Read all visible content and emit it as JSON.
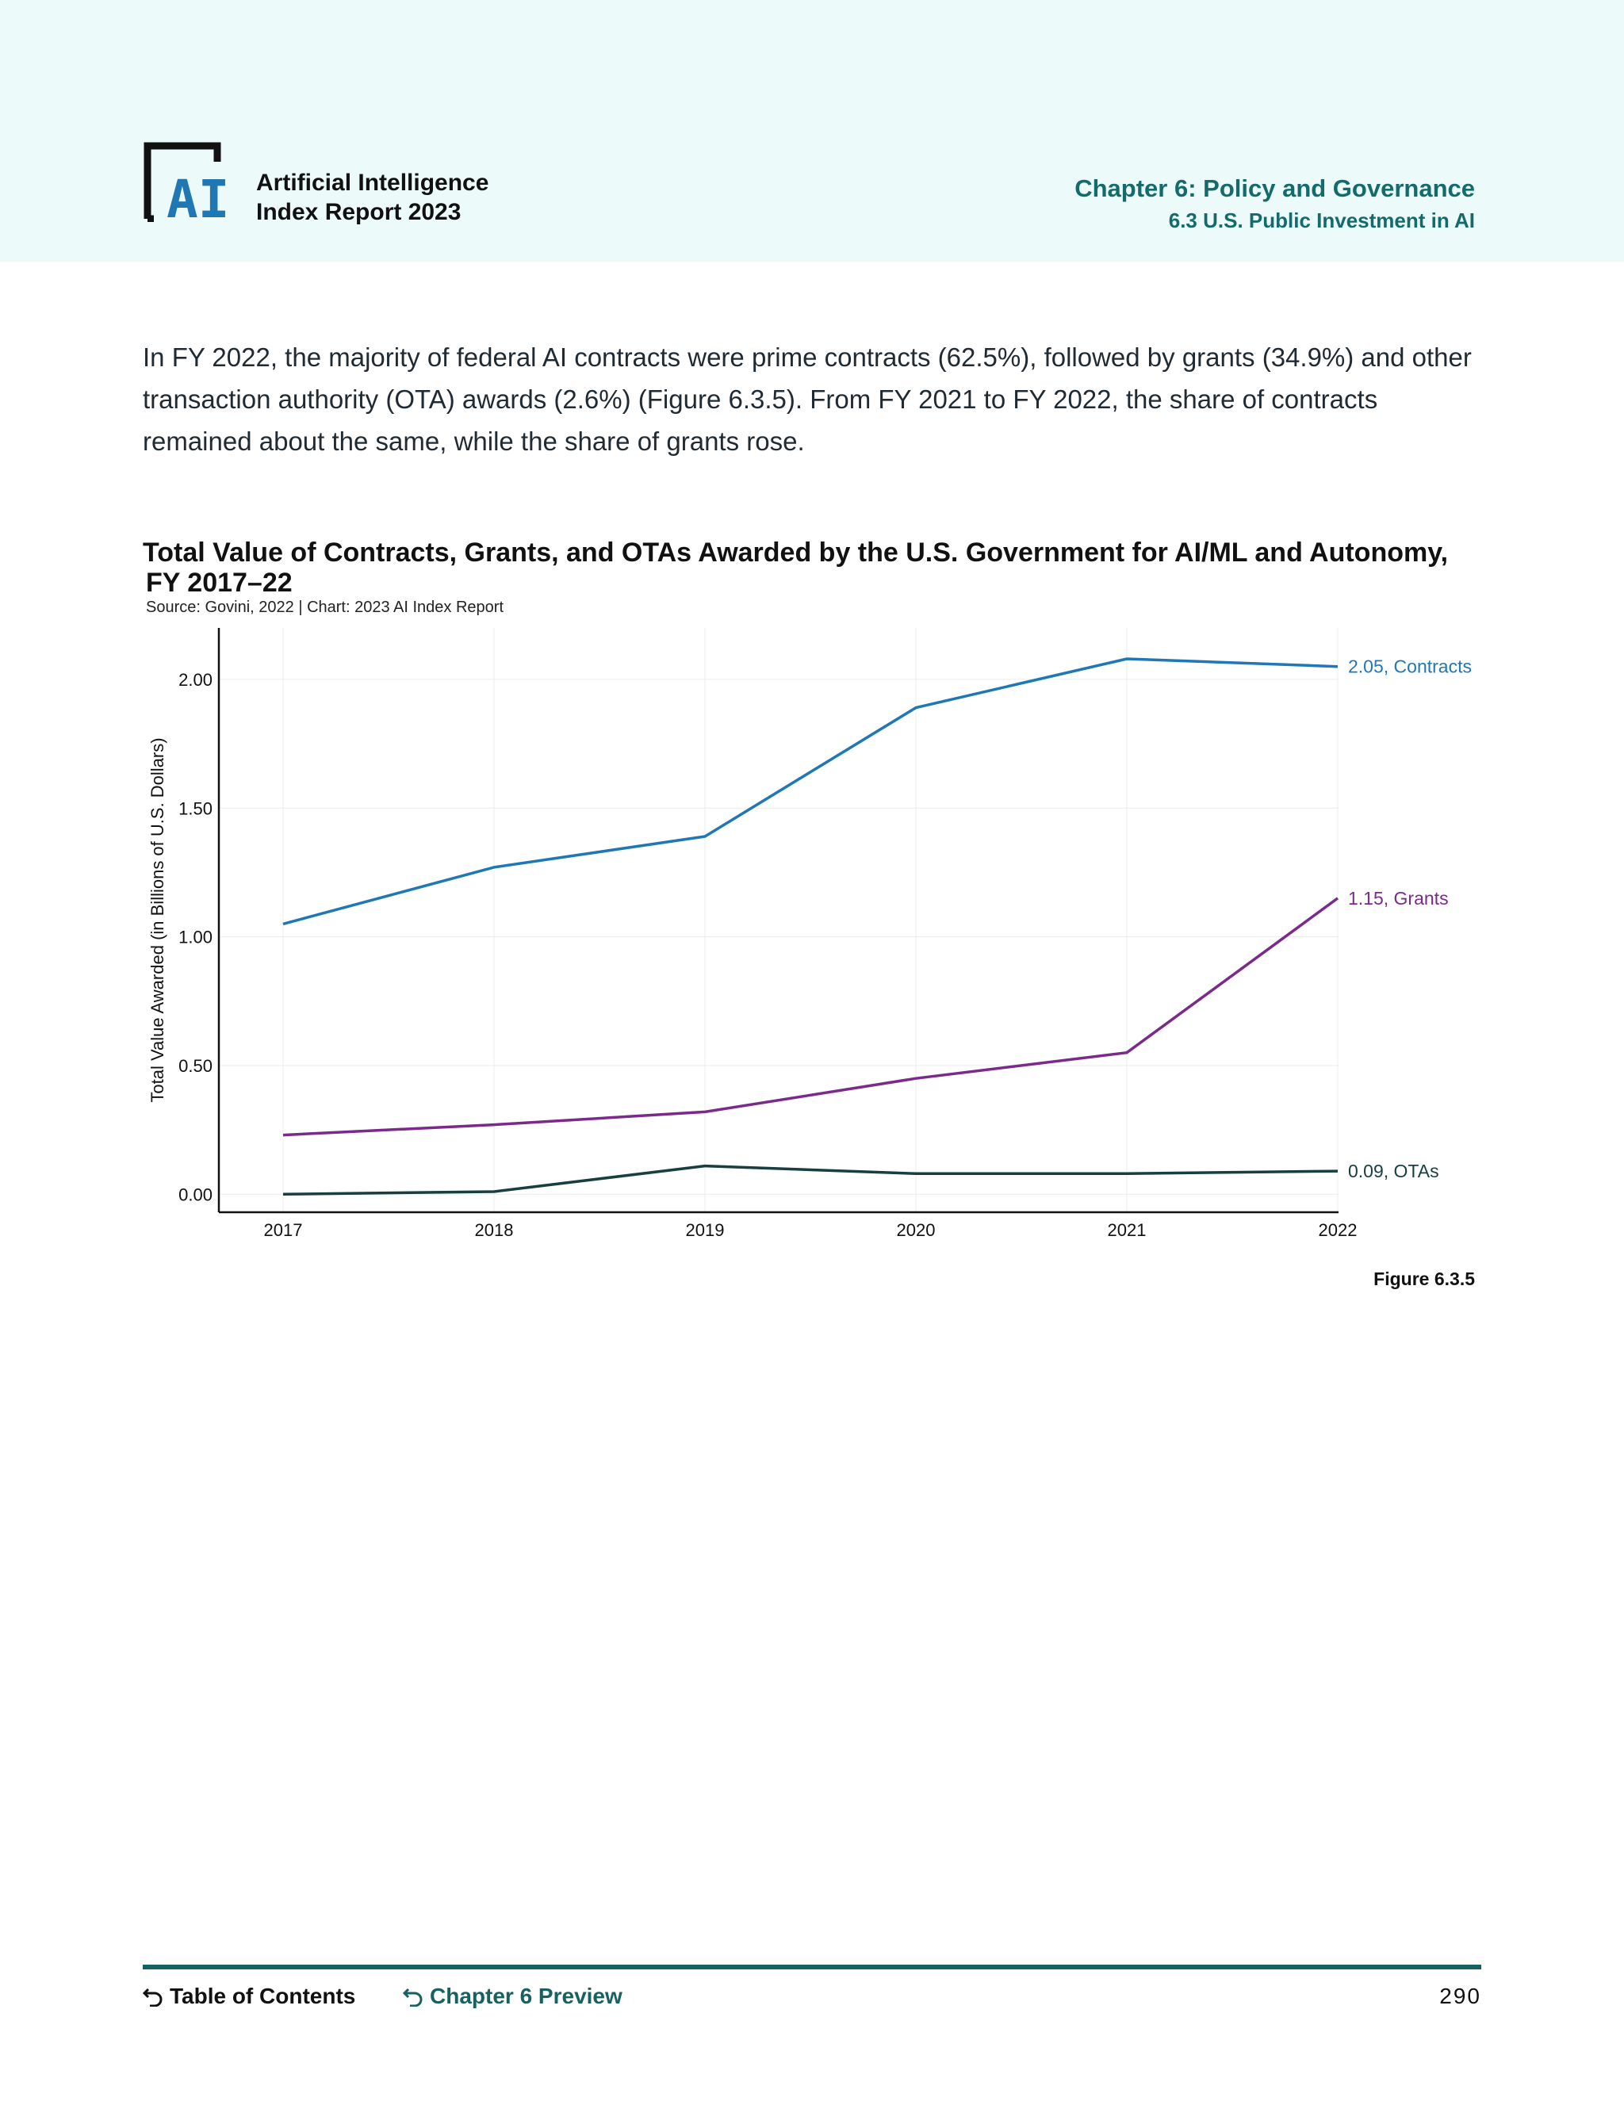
{
  "header": {
    "report_title_line1": "Artificial Intelligence",
    "report_title_line2": "Index Report 2023",
    "chapter_title": "Chapter 6: Policy and Governance",
    "section_title": "6.3 U.S. Public Investment in AI",
    "logo_text": "AI"
  },
  "intro_text": "In FY 2022, the majority of federal AI contracts were prime contracts (62.5%), followed by grants (34.9%) and other transaction authority (OTA) awards (2.6%) (Figure 6.3.5). From FY 2021 to FY 2022, the share of contracts remained about the same, while the share of grants rose.",
  "chart_data": {
    "type": "line",
    "title_line1": "Total Value of Contracts, Grants, and OTAs Awarded by the U.S. Government for AI/ML and Autonomy,",
    "title_line2": "FY 2017–22",
    "source": "Source: Govini, 2022 | Chart: 2023 AI Index Report",
    "ylabel": "Total Value Awarded (in Billions of U.S. Dollars)",
    "xlabel": "",
    "x": [
      "2017",
      "2018",
      "2019",
      "2020",
      "2021",
      "2022"
    ],
    "ylim": [
      -0.07,
      2.2
    ],
    "yticks": [
      0,
      0.5,
      1,
      1.5,
      2
    ],
    "ytick_labels": [
      "0.00",
      "0.50",
      "1.00",
      "1.50",
      "2.00"
    ],
    "grid": true,
    "series": [
      {
        "name": "Contracts",
        "values": [
          1.05,
          1.27,
          1.39,
          1.89,
          2.08,
          2.05
        ],
        "color": "#1f77b4",
        "end_label": "2.05, Contracts"
      },
      {
        "name": "Grants",
        "values": [
          0.23,
          0.27,
          0.32,
          0.45,
          0.55,
          1.15
        ],
        "color": "#7b2a8c",
        "end_label": "1.15, Grants"
      },
      {
        "name": "OTAs",
        "values": [
          0.0,
          0.01,
          0.11,
          0.08,
          0.08,
          0.09
        ],
        "color": "#173f3f",
        "end_label": "0.09, OTAs"
      }
    ]
  },
  "figure_label": "Figure 6.3.5",
  "footer": {
    "toc_label": "Table of Contents",
    "chapter_preview_label": "Chapter 6 Preview",
    "page_number": "290"
  },
  "colors": {
    "header_bg": "#ecfbfa",
    "accent": "#136b6b",
    "logo_blue": "#1f77b4"
  }
}
